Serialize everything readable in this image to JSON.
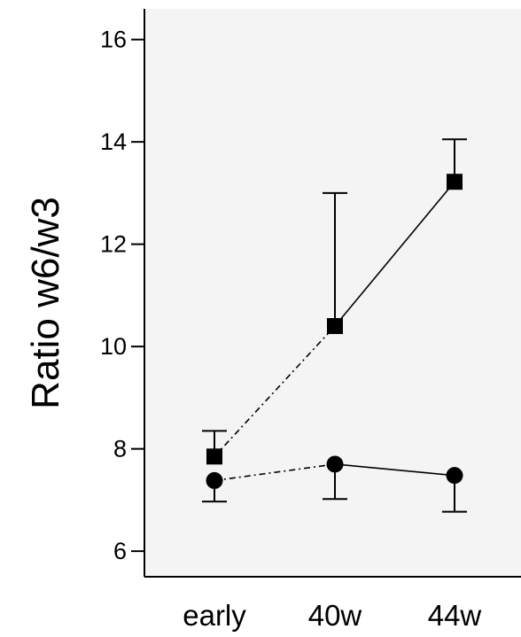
{
  "chart_data": {
    "type": "line",
    "title": "",
    "xlabel": "",
    "ylabel": "Ratio w6/w3",
    "categories": [
      "early",
      "40w",
      "44w"
    ],
    "ylim": [
      5.5,
      16.6
    ],
    "yticks": [
      6,
      8,
      10,
      12,
      14,
      16
    ],
    "grid": false,
    "legend": "none",
    "background": "#f4f4f4",
    "series": [
      {
        "marker": "square",
        "values": [
          7.85,
          10.4,
          13.22
        ],
        "error_bars": [
          {
            "direction": "up",
            "end": 8.35
          },
          {
            "direction": "up",
            "end": 13.0
          },
          {
            "direction": "up",
            "end": 14.05
          }
        ],
        "segment_styles": [
          "dashdot",
          "solid"
        ]
      },
      {
        "marker": "circle",
        "values": [
          7.38,
          7.7,
          7.48
        ],
        "error_bars": [
          {
            "direction": "down",
            "end": 6.97
          },
          {
            "direction": "down",
            "end": 7.02
          },
          {
            "direction": "down",
            "end": 6.77
          }
        ],
        "segment_styles": [
          "dashdot",
          "solid"
        ]
      }
    ]
  }
}
